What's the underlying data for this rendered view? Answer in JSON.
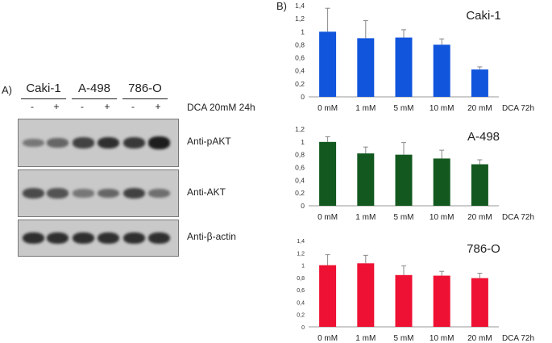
{
  "panel_a": {
    "label": "A)",
    "cell_lines": [
      "Caki-1",
      "A-498",
      "786-O"
    ],
    "signs": [
      "-",
      "+",
      "-",
      "+",
      "-",
      "+"
    ],
    "treatment": "DCA 20mM 24h",
    "blots": [
      {
        "label": "Anti-pAKT",
        "intensities": [
          0.45,
          0.55,
          0.75,
          0.85,
          0.8,
          0.95
        ]
      },
      {
        "label": "Anti-AKT",
        "intensities": [
          0.7,
          0.65,
          0.45,
          0.55,
          0.75,
          0.5
        ]
      },
      {
        "label": "Anti-β-actin",
        "intensities": [
          0.85,
          0.85,
          0.85,
          0.85,
          0.85,
          0.85
        ]
      }
    ]
  },
  "panel_b": {
    "label": "B)"
  },
  "chart_data": [
    {
      "type": "bar",
      "title": "Caki-1",
      "categories": [
        "0 mM",
        "1 mM",
        "5 mM",
        "10 mM",
        "20 mM"
      ],
      "xlabel": "DCA 72h",
      "values": [
        1.0,
        0.9,
        0.91,
        0.8,
        0.42
      ],
      "errors": [
        0.36,
        0.27,
        0.12,
        0.09,
        0.04
      ],
      "ylim": [
        0,
        1.4
      ],
      "yticks": [
        "0",
        "0,2",
        "0,4",
        "0,6",
        "0,8",
        "1",
        "1,2",
        "1,4"
      ],
      "color": "#1155dd"
    },
    {
      "type": "bar",
      "title": "A-498",
      "categories": [
        "0 mM",
        "1 mM",
        "5 mM",
        "10 mM",
        "20 mM"
      ],
      "xlabel": "DCA 72h",
      "values": [
        1.0,
        0.82,
        0.8,
        0.74,
        0.65
      ],
      "errors": [
        0.08,
        0.1,
        0.19,
        0.13,
        0.07
      ],
      "ylim": [
        0,
        1.2
      ],
      "yticks": [
        "0",
        "0,2",
        "0,4",
        "0,6",
        "0,8",
        "1",
        "1,2"
      ],
      "color": "#13591f"
    },
    {
      "type": "bar",
      "title": "786-O",
      "categories": [
        "0 mM",
        "1 mM",
        "5 mM",
        "10 mM",
        "20 mM"
      ],
      "xlabel": "DCA 72h",
      "values": [
        1.0,
        1.03,
        0.84,
        0.83,
        0.79
      ],
      "errors": [
        0.17,
        0.13,
        0.15,
        0.07,
        0.08
      ],
      "ylim": [
        0,
        1.4
      ],
      "yticks": [
        "0",
        "0,2",
        "0,4",
        "0,6",
        "0,8",
        "1",
        "1,2",
        "1,4"
      ],
      "color": "#ee1133"
    }
  ]
}
